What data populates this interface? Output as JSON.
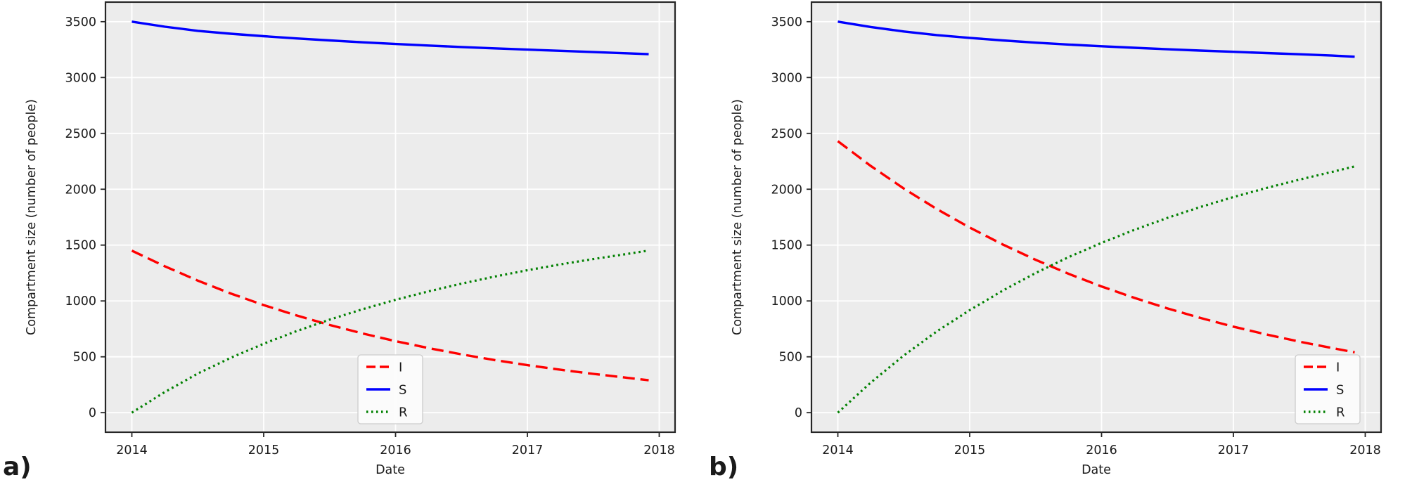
{
  "figure_caption_labels": [
    "a)",
    "b)"
  ],
  "colors": {
    "figure_bg": "#ffffff",
    "plot_bg": "#ececec",
    "grid": "#ffffff",
    "spine": "#262626",
    "text": "#1a1a1a",
    "series_I": "#ff0000",
    "series_S": "#0000ff",
    "series_R": "#008000",
    "legend_bg": "#fcfcfc",
    "legend_border": "#cccccc"
  },
  "chart_data": [
    {
      "type": "line",
      "panel_label": "a)",
      "title": "",
      "xlabel": "Date",
      "ylabel": "Compartment size (number of people)",
      "xlim": [
        2013.8,
        2018.12
      ],
      "ylim": [
        -175,
        3675
      ],
      "xticks": [
        2014,
        2015,
        2016,
        2017,
        2018
      ],
      "yticks": [
        0,
        500,
        1000,
        1500,
        2000,
        2500,
        3000,
        3500
      ],
      "grid": true,
      "legend_position": "lower center",
      "legend_entries": [
        "I",
        "S",
        "R"
      ],
      "x": [
        2014,
        2014.25,
        2014.5,
        2014.75,
        2015,
        2015.25,
        2015.5,
        2015.75,
        2016,
        2016.25,
        2016.5,
        2016.75,
        2017,
        2017.25,
        2017.5,
        2017.75,
        2017.92
      ],
      "series": [
        {
          "name": "I",
          "color": "#ff0000",
          "line_style": "dashed",
          "values": [
            1450,
            1310,
            1182,
            1067,
            963,
            870,
            785,
            709,
            640,
            578,
            522,
            471,
            425,
            384,
            347,
            313,
            290
          ]
        },
        {
          "name": "S",
          "color": "#0000ff",
          "line_style": "solid",
          "values": [
            3500,
            3455,
            3418,
            3392,
            3370,
            3350,
            3332,
            3315,
            3300,
            3286,
            3273,
            3261,
            3250,
            3239,
            3228,
            3217,
            3209
          ]
        },
        {
          "name": "R",
          "color": "#008000",
          "line_style": "dotted",
          "values": [
            0,
            185,
            350,
            491,
            617,
            730,
            833,
            926,
            1010,
            1086,
            1155,
            1218,
            1275,
            1327,
            1375,
            1420,
            1451
          ]
        }
      ]
    },
    {
      "type": "line",
      "panel_label": "b)",
      "title": "",
      "xlabel": "Date",
      "ylabel": "Compartment size (number of people)",
      "xlim": [
        2013.8,
        2018.12
      ],
      "ylim": [
        -175,
        3675
      ],
      "xticks": [
        2014,
        2015,
        2016,
        2017,
        2018
      ],
      "yticks": [
        0,
        500,
        1000,
        1500,
        2000,
        2500,
        3000,
        3500
      ],
      "grid": true,
      "legend_position": "lower right",
      "legend_entries": [
        "I",
        "S",
        "R"
      ],
      "x": [
        2014,
        2014.25,
        2014.5,
        2014.75,
        2015,
        2015.25,
        2015.5,
        2015.75,
        2016,
        2016.25,
        2016.5,
        2016.75,
        2017,
        2017.25,
        2017.5,
        2017.75,
        2017.92
      ],
      "series": [
        {
          "name": "I",
          "color": "#ff0000",
          "line_style": "dashed",
          "values": [
            2430,
            2208,
            2006,
            1823,
            1657,
            1506,
            1368,
            1243,
            1130,
            1027,
            933,
            848,
            770,
            700,
            636,
            578,
            540
          ]
        },
        {
          "name": "S",
          "color": "#0000ff",
          "line_style": "solid",
          "values": [
            3500,
            3452,
            3412,
            3380,
            3355,
            3332,
            3312,
            3295,
            3280,
            3266,
            3253,
            3241,
            3230,
            3219,
            3208,
            3196,
            3186
          ]
        },
        {
          "name": "R",
          "color": "#008000",
          "line_style": "dotted",
          "values": [
            0,
            270,
            512,
            727,
            918,
            1092,
            1250,
            1392,
            1520,
            1637,
            1744,
            1841,
            1930,
            2011,
            2086,
            2156,
            2204
          ]
        }
      ]
    }
  ]
}
